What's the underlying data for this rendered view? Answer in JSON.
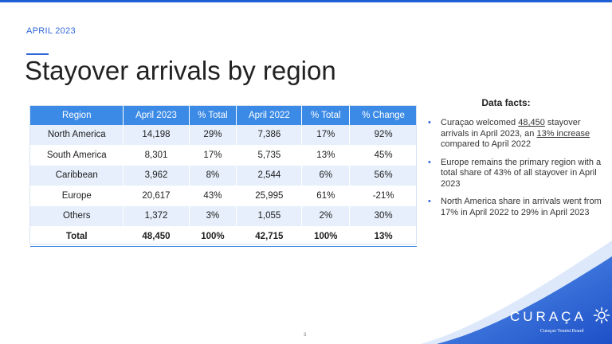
{
  "header": {
    "eyebrow": "APRIL 2023",
    "title": "Stayover arrivals by region"
  },
  "table": {
    "columns": [
      "Region",
      "April 2023",
      "% Total",
      "April 2022",
      "% Total",
      "% Change"
    ],
    "rows": [
      [
        "North America",
        "14,198",
        "29%",
        "7,386",
        "17%",
        "92%"
      ],
      [
        "South America",
        "8,301",
        "17%",
        "5,735",
        "13%",
        "45%"
      ],
      [
        "Caribbean",
        "3,962",
        "8%",
        "2,544",
        "6%",
        "56%"
      ],
      [
        "Europe",
        "20,617",
        "43%",
        "25,995",
        "61%",
        "-21%"
      ],
      [
        "Others",
        "1,372",
        "3%",
        "1,055",
        "2%",
        "30%"
      ],
      [
        "Total",
        "48,450",
        "100%",
        "42,715",
        "100%",
        "13%"
      ]
    ]
  },
  "facts": {
    "title": "Data facts:",
    "bullet_glyph": "•",
    "f1": {
      "pre": "Curaçao welcomed ",
      "u1": "48,450",
      "mid": " stayover arrivals in April 2023, an ",
      "u2": "13% increase",
      "post": " compared to April 2022"
    },
    "f2": "Europe remains the primary region with a total share of 43% of all stayover in April 2023",
    "f3": "North America share in arrivals went from 17% in April 2022 to 29% in April 2023"
  },
  "brand": {
    "logo_text": "CURAÇA",
    "logo_sun_icon": "sun-icon",
    "tagline": "Curaçao Tourist Board",
    "colors": {
      "accent": "#2f66d8",
      "table_header": "#3b8ae6",
      "row_tint": "#e6effb",
      "wave_dark": "#1d4fc7"
    }
  },
  "footer": {
    "page_number": "3"
  }
}
